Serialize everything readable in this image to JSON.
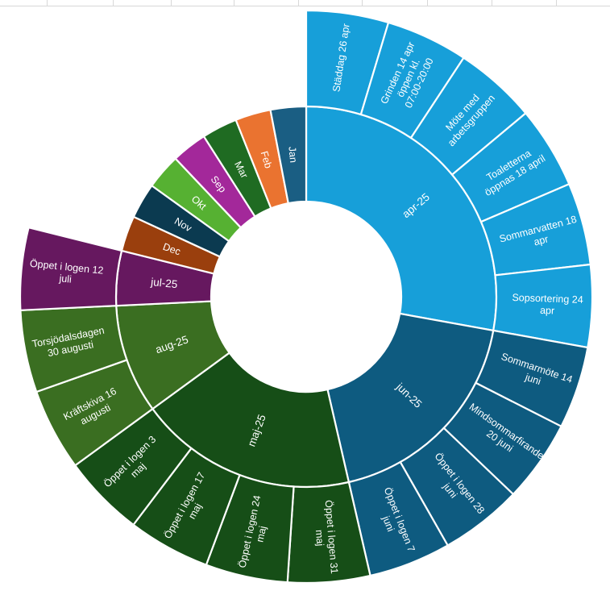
{
  "chart_data": {
    "type": "sunburst",
    "title": "",
    "inner": [
      {
        "label": "apr-25",
        "value": 6,
        "color": "#179fd9"
      },
      {
        "label": "jun-25",
        "value": 4,
        "color": "#0e5b80"
      },
      {
        "label": "maj-25",
        "value": 4,
        "color": "#164e17"
      },
      {
        "label": "aug-25",
        "value": 2,
        "color": "#3a6e21"
      },
      {
        "label": "jul-25",
        "value": 1,
        "color": "#66185f"
      },
      {
        "label": "Dec",
        "value": 0.65,
        "color": "#9a3f0d"
      },
      {
        "label": "Nov",
        "value": 0.65,
        "color": "#0b3a50"
      },
      {
        "label": "Okt",
        "value": 0.65,
        "color": "#56b132"
      },
      {
        "label": "Sep",
        "value": 0.65,
        "color": "#a3289a"
      },
      {
        "label": "Mar",
        "value": 0.65,
        "color": "#1f6b22"
      },
      {
        "label": "Feb",
        "value": 0.65,
        "color": "#ea7330"
      },
      {
        "label": "Jan",
        "value": 0.65,
        "color": "#1a5e83"
      }
    ],
    "outer": [
      {
        "label": "Städdag 26 apr",
        "parent": "apr-25"
      },
      {
        "label": "Grinden 14 apr öppen kl. 07:00-20:00",
        "parent": "apr-25"
      },
      {
        "label": "Möte med arbetsgruppen",
        "parent": "apr-25"
      },
      {
        "label": "Toaletterna öppnas 18 april",
        "parent": "apr-25"
      },
      {
        "label": "Sommarvatten 18 apr",
        "parent": "apr-25"
      },
      {
        "label": "Sopsortering 24 apr",
        "parent": "apr-25"
      },
      {
        "label": "Sommarmöte 14 juni",
        "parent": "jun-25"
      },
      {
        "label": "Mindsommarfirande 20 juni",
        "parent": "jun-25"
      },
      {
        "label": "Öppet i logen 28 juni",
        "parent": "jun-25"
      },
      {
        "label": "Öppet i logen 7 juni",
        "parent": "jun-25"
      },
      {
        "label": "Öppet i logen 31 maj",
        "parent": "maj-25"
      },
      {
        "label": "Öppet i logen 24 maj",
        "parent": "maj-25"
      },
      {
        "label": "Öppet i logen 17 maj",
        "parent": "maj-25"
      },
      {
        "label": "Öppet i logen 3 maj",
        "parent": "maj-25"
      },
      {
        "label": "Kräftskiva 16 augusti",
        "parent": "aug-25"
      },
      {
        "label": "Torsjödalsdagen 30 augusti",
        "parent": "aug-25"
      },
      {
        "label": "Öppet i logen 12 juli",
        "parent": "jul-25"
      }
    ]
  }
}
